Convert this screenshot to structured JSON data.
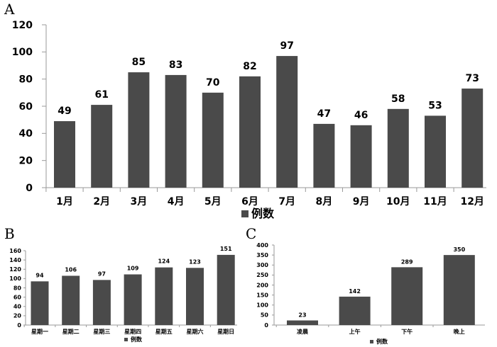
{
  "colors": {
    "bar": "#4a4a4a",
    "axis": "#9a9a9a",
    "text": "#000000"
  },
  "chart_data": [
    {
      "panel": "A",
      "type": "bar",
      "categories": [
        "1月",
        "2月",
        "3月",
        "4月",
        "5月",
        "6月",
        "7月",
        "8月",
        "9月",
        "10月",
        "11月",
        "12月"
      ],
      "values": [
        49,
        61,
        85,
        83,
        70,
        82,
        97,
        47,
        46,
        58,
        53,
        73
      ],
      "series": [
        {
          "name": "例数",
          "values": [
            49,
            61,
            85,
            83,
            70,
            82,
            97,
            47,
            46,
            58,
            53,
            73
          ]
        }
      ],
      "yticks": [
        "0",
        "20",
        "40",
        "60",
        "80",
        "100",
        "120"
      ],
      "ylim": [
        0,
        120
      ],
      "legend": "例数",
      "legend_position": "bottom",
      "grid": false
    },
    {
      "panel": "B",
      "type": "bar",
      "categories": [
        "星期一",
        "星期二",
        "星期三",
        "星期四",
        "星期五",
        "星期六",
        "星期日"
      ],
      "values": [
        94,
        106,
        97,
        109,
        124,
        123,
        151
      ],
      "series": [
        {
          "name": "例数",
          "values": [
            94,
            106,
            97,
            109,
            124,
            123,
            151
          ]
        }
      ],
      "yticks": [
        "0",
        "20",
        "40",
        "60",
        "80",
        "100",
        "120",
        "140",
        "160"
      ],
      "ylim": [
        0,
        160
      ],
      "legend": "例数",
      "legend_position": "bottom",
      "grid": false
    },
    {
      "panel": "C",
      "type": "bar",
      "categories": [
        "凌晨",
        "上午",
        "下午",
        "晚上"
      ],
      "values": [
        23,
        142,
        289,
        350
      ],
      "series": [
        {
          "name": "例数",
          "values": [
            23,
            142,
            289,
            350
          ]
        }
      ],
      "yticks": [
        "0",
        "50",
        "100",
        "150",
        "200",
        "250",
        "300",
        "350",
        "400"
      ],
      "ylim": [
        0,
        400
      ],
      "legend": "例数",
      "legend_position": "bottom",
      "grid": false
    }
  ]
}
